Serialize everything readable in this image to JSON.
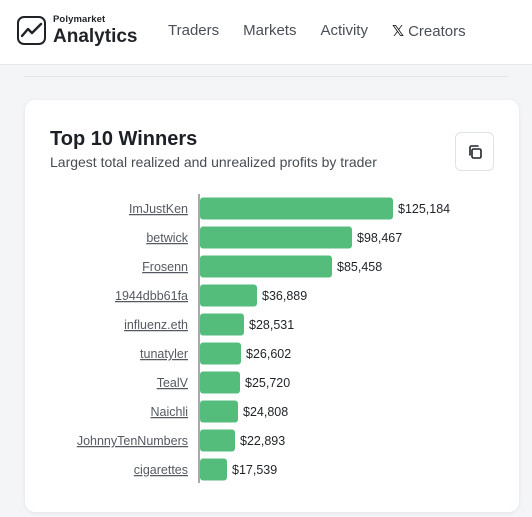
{
  "brand": {
    "small": "Polymarket",
    "big": "Analytics"
  },
  "nav": {
    "items": [
      {
        "label": "Traders"
      },
      {
        "label": "Markets"
      },
      {
        "label": "Activity"
      },
      {
        "label": "Creators",
        "icon": "x-logo-icon"
      }
    ]
  },
  "card": {
    "title": "Top 10 Winners",
    "subtitle": "Largest total realized and unrealized profits by trader",
    "copy_icon": "copy-icon"
  },
  "colors": {
    "bar": "#55bd7c",
    "axis": "#8a8f96",
    "background": "#f4f5f7"
  },
  "chart_data": {
    "type": "bar",
    "orientation": "horizontal",
    "categories": [
      "ImJustKen",
      "betwick",
      "Frosenn",
      "1944dbb61fa",
      "influenz.eth",
      "tunatyler",
      "TealV",
      "Naichli",
      "JohnnyTenNumbers",
      "cigarettes"
    ],
    "values": [
      125184,
      98467,
      85458,
      36889,
      28531,
      26602,
      25720,
      24808,
      22893,
      17539
    ],
    "value_labels": [
      "$125,184",
      "$98,467",
      "$85,458",
      "$36,889",
      "$28,531",
      "$26,602",
      "$25,720",
      "$24,808",
      "$22,893",
      "$17,539"
    ],
    "grid": false,
    "legend": "none"
  }
}
